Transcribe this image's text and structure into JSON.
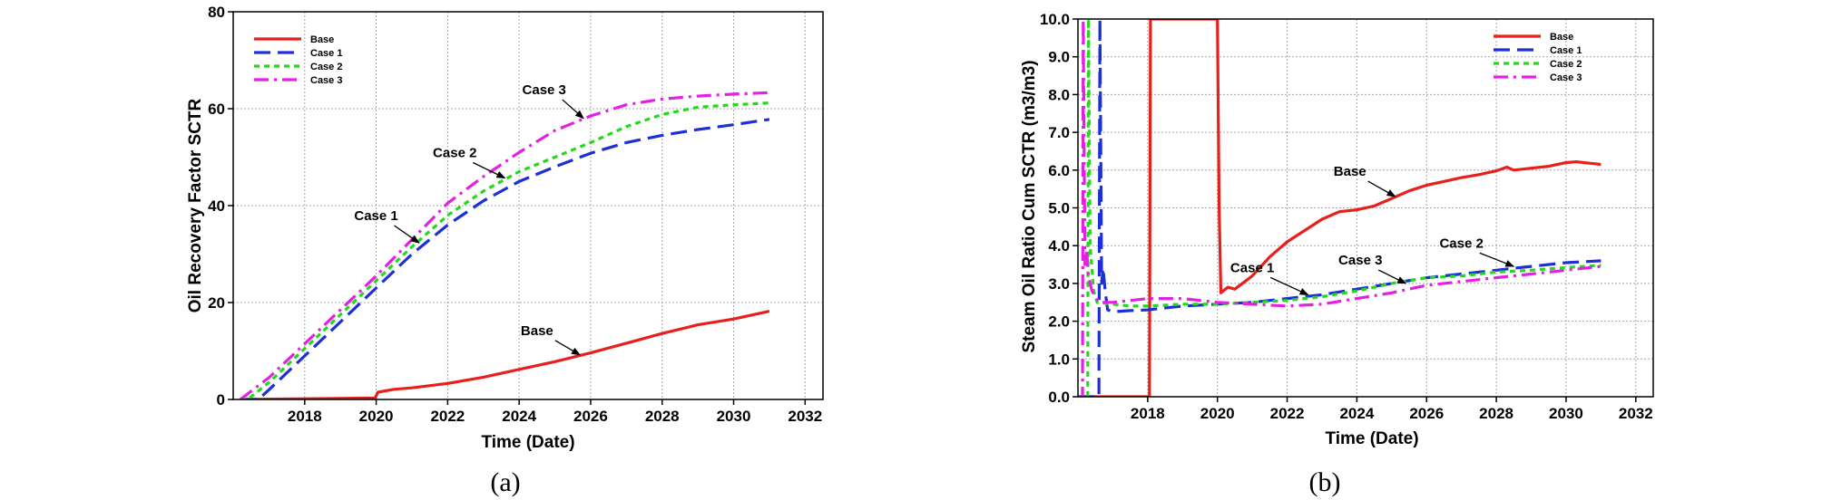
{
  "chart_data": [
    {
      "type": "line",
      "caption": "(a)",
      "xlabel": "Time (Date)",
      "ylabel": "Oil Recovery Factor SCTR",
      "xlim": [
        2016,
        2032.5
      ],
      "ylim": [
        0,
        80
      ],
      "x_ticks": [
        2018,
        2020,
        2022,
        2024,
        2026,
        2028,
        2030,
        2032
      ],
      "y_ticks": [
        0,
        20,
        40,
        60,
        80
      ],
      "grid": true,
      "legend": {
        "placement": "top-left"
      },
      "series": [
        {
          "name": "Base",
          "color": "#e8201c",
          "dash": "solid",
          "x": [
            2016.2,
            2019.97,
            2020.05,
            2020.5,
            2021.0,
            2022.0,
            2023.0,
            2024.0,
            2025.0,
            2026.0,
            2027.0,
            2028.0,
            2029.0,
            2030.0,
            2031.0
          ],
          "y": [
            0,
            0.3,
            1.5,
            2.1,
            2.4,
            3.3,
            4.6,
            6.2,
            7.8,
            9.6,
            11.6,
            13.6,
            15.4,
            16.6,
            18.2
          ]
        },
        {
          "name": "Case 1",
          "color": "#1c2fd8",
          "dash": "long-dash",
          "x": [
            2016.2,
            2016.7,
            2017.0,
            2018.0,
            2019.0,
            2020.0,
            2021.0,
            2022.0,
            2023.0,
            2024.0,
            2025.0,
            2026.0,
            2027.0,
            2028.0,
            2029.0,
            2030.0,
            2031.0
          ],
          "y": [
            0,
            0,
            2.0,
            9.0,
            16.0,
            23.0,
            30.0,
            36.0,
            41.0,
            45.0,
            48.0,
            50.8,
            53.0,
            54.5,
            55.7,
            56.7,
            57.8
          ]
        },
        {
          "name": "Case 2",
          "color": "#24d81c",
          "dash": "short-dash",
          "x": [
            2016.2,
            2016.4,
            2017.0,
            2018.0,
            2019.0,
            2020.0,
            2021.0,
            2022.0,
            2023.0,
            2024.0,
            2025.0,
            2026.0,
            2027.0,
            2028.0,
            2029.0,
            2030.0,
            2031.0
          ],
          "y": [
            0,
            0,
            3.5,
            10.5,
            17.5,
            24.5,
            31.5,
            38.0,
            43.0,
            47.0,
            50.0,
            53.0,
            56.3,
            58.8,
            60.3,
            60.8,
            61.2
          ]
        },
        {
          "name": "Case 3",
          "color": "#e520e5",
          "dash": "dash-dot",
          "x": [
            2016.2,
            2017.0,
            2018.0,
            2019.0,
            2020.0,
            2021.0,
            2022.0,
            2023.0,
            2024.0,
            2025.0,
            2026.0,
            2027.0,
            2028.0,
            2029.0,
            2030.0,
            2031.0
          ],
          "y": [
            0,
            4.5,
            11.5,
            18.5,
            25.5,
            33.0,
            40.5,
            46.0,
            51.0,
            55.5,
            58.5,
            60.8,
            62.0,
            62.6,
            63.0,
            63.3
          ]
        }
      ],
      "annotations": [
        {
          "text": "Case 3",
          "label_x": 2024.7,
          "label_y": 63.0,
          "arrow_x": 2025.8,
          "arrow_y": 58.0
        },
        {
          "text": "Case 2",
          "label_x": 2022.2,
          "label_y": 50.0,
          "arrow_x": 2023.6,
          "arrow_y": 45.7
        },
        {
          "text": "Case 1",
          "label_x": 2020.0,
          "label_y": 37.0,
          "arrow_x": 2021.2,
          "arrow_y": 32.3
        },
        {
          "text": "Base",
          "label_x": 2024.5,
          "label_y": 13.3,
          "arrow_x": 2025.7,
          "arrow_y": 9.2
        }
      ]
    },
    {
      "type": "line",
      "caption": "(b)",
      "xlabel": "Time (Date)",
      "ylabel": "Steam Oil Ratio Cum SCTR (m3/m3)",
      "xlim": [
        2016,
        2032.5
      ],
      "ylim": [
        0,
        10
      ],
      "x_ticks": [
        2018,
        2020,
        2022,
        2024,
        2026,
        2028,
        2030,
        2032
      ],
      "y_ticks": [
        "0.0",
        "1.0",
        "2.0",
        "3.0",
        "4.0",
        "5.0",
        "6.0",
        "7.0",
        "8.0",
        "9.0",
        "10.0"
      ],
      "grid": true,
      "legend": {
        "placement": "top-right"
      },
      "series": [
        {
          "name": "Base",
          "color": "#e8201c",
          "dash": "solid",
          "x": [
            2016.0,
            2018.05,
            2018.08,
            2018.1,
            2018.12,
            2019.98,
            2020.0,
            2020.05,
            2020.1,
            2020.3,
            2020.5,
            2021.0,
            2021.5,
            2022.0,
            2022.5,
            2023.0,
            2023.5,
            2024.0,
            2024.5,
            2025.0,
            2025.5,
            2026.0,
            2026.5,
            2027.0,
            2027.5,
            2028.0,
            2028.3,
            2028.5,
            2029.0,
            2029.5,
            2030.0,
            2030.3,
            2030.7,
            2031.0
          ],
          "y": [
            0,
            0,
            10.0,
            10.0,
            10.0,
            10.0,
            10.0,
            5.0,
            2.75,
            2.9,
            2.85,
            3.2,
            3.7,
            4.1,
            4.4,
            4.7,
            4.9,
            4.95,
            5.05,
            5.25,
            5.45,
            5.6,
            5.7,
            5.8,
            5.88,
            5.98,
            6.08,
            6.0,
            6.05,
            6.1,
            6.2,
            6.22,
            6.18,
            6.15
          ]
        },
        {
          "name": "Case 1",
          "color": "#1c2fd8",
          "dash": "long-dash",
          "x": [
            2016.0,
            2016.6,
            2016.63,
            2016.68,
            2016.72,
            2016.78,
            2016.85,
            2017.0,
            2017.5,
            2018.0,
            2019.0,
            2020.0,
            2021.0,
            2022.0,
            2023.0,
            2024.0,
            2025.0,
            2026.0,
            2027.0,
            2028.0,
            2029.0,
            2030.0,
            2031.0
          ],
          "y": [
            0,
            0,
            10.0,
            3.0,
            3.4,
            2.8,
            2.3,
            2.25,
            2.28,
            2.3,
            2.4,
            2.45,
            2.5,
            2.6,
            2.7,
            2.85,
            3.0,
            3.15,
            3.25,
            3.35,
            3.45,
            3.55,
            3.6
          ]
        },
        {
          "name": "Case 2",
          "color": "#24d81c",
          "dash": "short-dash",
          "x": [
            2016.0,
            2016.28,
            2016.3,
            2016.35,
            2016.4,
            2016.45,
            2016.55,
            2017.0,
            2017.5,
            2018.0,
            2019.0,
            2020.0,
            2021.0,
            2022.0,
            2023.0,
            2024.0,
            2025.0,
            2026.0,
            2027.0,
            2028.0,
            2029.0,
            2030.0,
            2031.0
          ],
          "y": [
            0,
            0,
            10.0,
            4.0,
            3.4,
            2.8,
            2.5,
            2.45,
            2.4,
            2.4,
            2.45,
            2.45,
            2.5,
            2.55,
            2.65,
            2.8,
            3.0,
            3.15,
            3.2,
            3.3,
            3.35,
            3.42,
            3.48
          ]
        },
        {
          "name": "Case 3",
          "color": "#e520e5",
          "dash": "dash-dot",
          "x": [
            2016.0,
            2016.13,
            2016.15,
            2016.2,
            2016.25,
            2016.3,
            2016.4,
            2016.6,
            2017.0,
            2018.0,
            2019.0,
            2020.0,
            2021.0,
            2022.0,
            2023.0,
            2024.0,
            2025.0,
            2026.0,
            2027.0,
            2028.0,
            2029.0,
            2030.0,
            2031.0
          ],
          "y": [
            0,
            0,
            10.0,
            3.5,
            3.9,
            3.2,
            2.8,
            2.5,
            2.5,
            2.6,
            2.6,
            2.5,
            2.45,
            2.4,
            2.45,
            2.6,
            2.75,
            2.95,
            3.05,
            3.15,
            3.25,
            3.35,
            3.45
          ]
        }
      ],
      "annotations": [
        {
          "text": "Base",
          "label_x": 2023.8,
          "label_y": 5.85,
          "arrow_x": 2025.1,
          "arrow_y": 5.3
        },
        {
          "text": "Case 1",
          "label_x": 2021.0,
          "label_y": 3.3,
          "arrow_x": 2022.6,
          "arrow_y": 2.7
        },
        {
          "text": "Case 3",
          "label_x": 2024.1,
          "label_y": 3.5,
          "arrow_x": 2025.4,
          "arrow_y": 3.0
        },
        {
          "text": "Case 2",
          "label_x": 2027.0,
          "label_y": 3.95,
          "arrow_x": 2028.5,
          "arrow_y": 3.45
        }
      ]
    }
  ]
}
